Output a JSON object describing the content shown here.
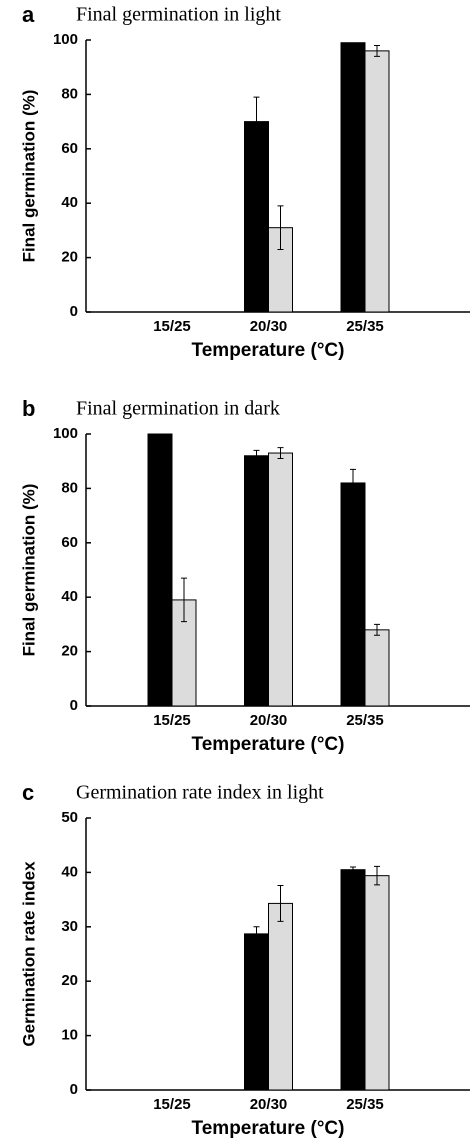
{
  "chart_data": [
    {
      "type": "bar",
      "panel": "a",
      "title": "Final germination in light",
      "ylabel": "Final germination (%)",
      "xlabel": "Temperature (°C)",
      "categories": [
        "15/25",
        "20/30",
        "25/35"
      ],
      "series": [
        {
          "color": "#000000",
          "values": [
            0,
            70,
            99
          ],
          "errors": [
            null,
            9,
            null
          ]
        },
        {
          "color": "#dcdcdc",
          "values": [
            0,
            31,
            96
          ],
          "errors": [
            null,
            8,
            2
          ]
        }
      ],
      "ylim": [
        0,
        100
      ],
      "yticks": [
        0,
        20,
        40,
        60,
        80,
        100
      ]
    },
    {
      "type": "bar",
      "panel": "b",
      "title": "Final germination in dark",
      "ylabel": "Final germination (%)",
      "xlabel": "Temperature (°C)",
      "categories": [
        "15/25",
        "20/30",
        "25/35"
      ],
      "series": [
        {
          "color": "#000000",
          "values": [
            100,
            92,
            82
          ],
          "errors": [
            null,
            2,
            5
          ]
        },
        {
          "color": "#dcdcdc",
          "values": [
            39,
            93,
            28
          ],
          "errors": [
            8,
            2,
            2
          ]
        }
      ],
      "ylim": [
        0,
        100
      ],
      "yticks": [
        0,
        20,
        40,
        60,
        80,
        100
      ]
    },
    {
      "type": "bar",
      "panel": "c",
      "title": "Germination rate index in light",
      "ylabel": "Germination rate index",
      "xlabel": "Temperature (°C)",
      "categories": [
        "15/25",
        "20/30",
        "25/35"
      ],
      "series": [
        {
          "color": "#000000",
          "values": [
            0,
            28.7,
            40.5
          ],
          "errors": [
            null,
            1.3,
            0.5
          ]
        },
        {
          "color": "#dcdcdc",
          "values": [
            0,
            34.3,
            39.4
          ],
          "errors": [
            null,
            3.3,
            1.7
          ]
        }
      ],
      "ylim": [
        0,
        50
      ],
      "yticks": [
        0,
        10,
        20,
        30,
        40,
        50
      ]
    }
  ]
}
